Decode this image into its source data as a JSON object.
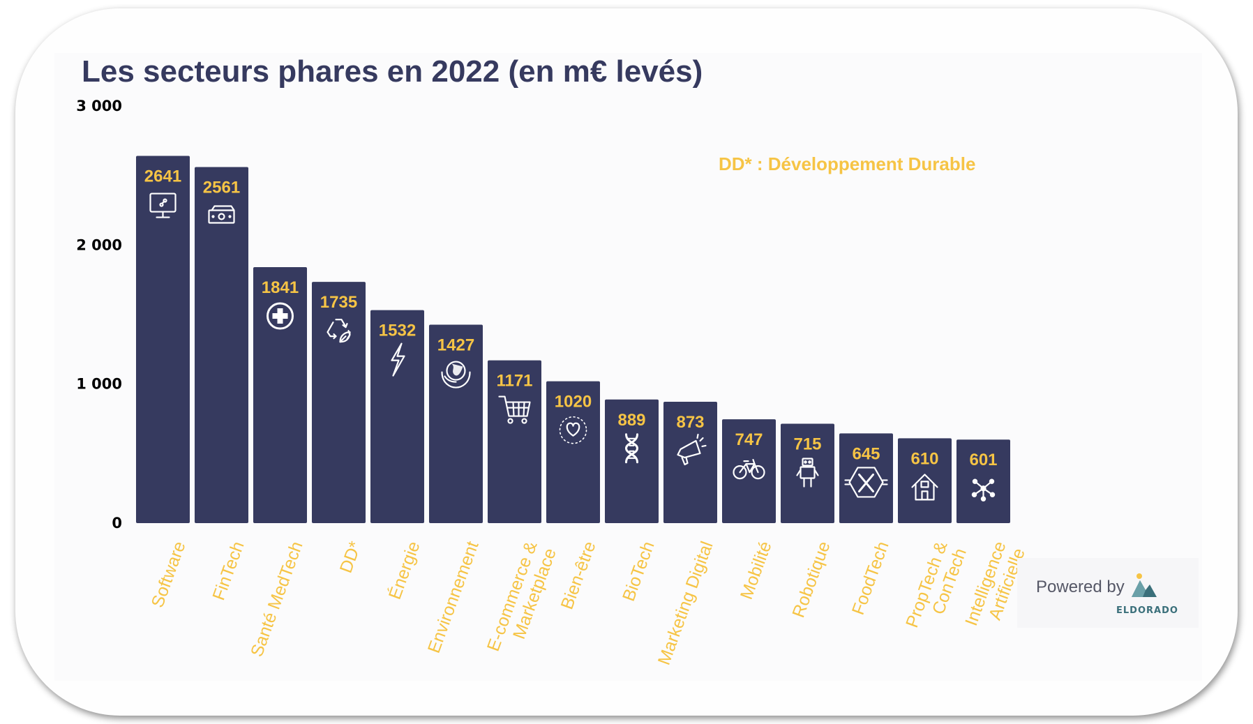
{
  "chart_data": {
    "type": "bar",
    "title": "Les secteurs phares en 2022 (en m€ levés)",
    "note": "DD* : Développement Durable",
    "ylim": [
      0,
      3000
    ],
    "yticks": [
      "3 000",
      "2 000",
      "1 000",
      "0"
    ],
    "ytick_values": [
      3000,
      2000,
      1000,
      0
    ],
    "categories": [
      "Software",
      "FinTech",
      "Santé MedTech",
      "DD*",
      "Énergie",
      "Environnement",
      "E-commerce & Marketplace",
      "Bien-être",
      "BioTech",
      "Marketing Digital",
      "Mobilité",
      "Robotique",
      "FoodTech",
      "PropTech & ConTech",
      "Intelligence Artificielle"
    ],
    "category_lines": [
      [
        "Software"
      ],
      [
        "FinTech"
      ],
      [
        "Santé MedTech"
      ],
      [
        "DD*"
      ],
      [
        "Énergie"
      ],
      [
        "Environnement"
      ],
      [
        "E-commerce &",
        "Marketplace"
      ],
      [
        "Bien-être"
      ],
      [
        "BioTech"
      ],
      [
        "Marketing Digital"
      ],
      [
        "Mobilité"
      ],
      [
        "Robotique"
      ],
      [
        "FoodTech"
      ],
      [
        "PropTech &",
        "ConTech"
      ],
      [
        "Intelligence",
        "Artificielle"
      ]
    ],
    "values": [
      2641,
      2561,
      1841,
      1735,
      1532,
      1427,
      1171,
      1020,
      889,
      873,
      747,
      715,
      645,
      610,
      601
    ],
    "icons": [
      "computer-monitor-icon",
      "banknote-icon",
      "medical-cross-icon",
      "recycle-icon",
      "lightning-icon",
      "globe-leaf-icon",
      "shopping-cart-icon",
      "heart-icon",
      "dna-icon",
      "megaphone-icon",
      "bicycle-icon",
      "robot-icon",
      "fork-knife-icon",
      "house-icon",
      "network-icon"
    ],
    "grid": false,
    "colors": {
      "bar": "#363a5f",
      "value_label": "#f6c445",
      "category_label": "#f6c445",
      "axis_text": "#000000",
      "icon": "#ffffff"
    }
  },
  "footer": {
    "powered_by": "Powered by",
    "brand": "ELDORADO"
  }
}
